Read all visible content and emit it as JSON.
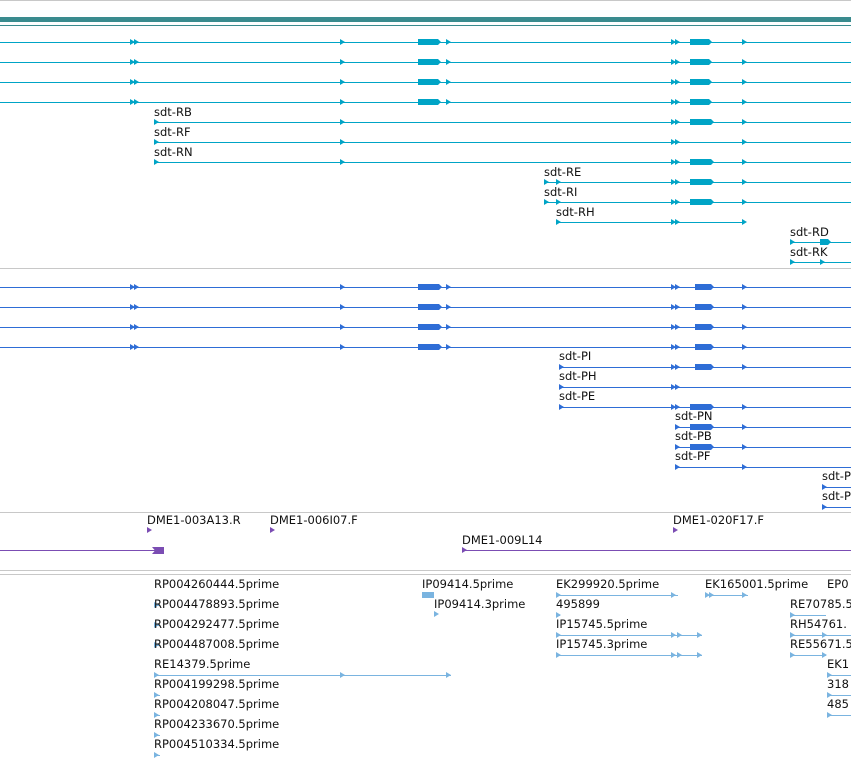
{
  "colors": {
    "teal_bar": "#3a8b8e",
    "transcript": "#00a4c6",
    "protein": "#2e6dd6",
    "clone": "#7b4db3",
    "est": "#7ab4e0",
    "separator": "#c8c8c8"
  },
  "transcripts": {
    "labels": [
      "sdt-RB",
      "sdt-RF",
      "sdt-RN",
      "sdt-RE",
      "sdt-RI",
      "sdt-RH",
      "sdt-RD",
      "sdt-RK"
    ]
  },
  "proteins": {
    "labels": [
      "sdt-PI",
      "sdt-PH",
      "sdt-PE",
      "sdt-PN",
      "sdt-PB",
      "sdt-PF",
      "sdt-P",
      "sdt-P"
    ]
  },
  "clones": {
    "labels": [
      "DME1-003A13.R",
      "DME1-006I07.F",
      "DME1-020F17.F",
      "DME1-009L14"
    ]
  },
  "ests": {
    "labels": [
      "RP004260444.5prime",
      "RP004478893.5prime",
      "RP004292477.5prime",
      "RP004487008.5prime",
      "RE14379.5prime",
      "RP004199298.5prime",
      "RP004208047.5prime",
      "RP004233670.5prime",
      "RP004510334.5prime",
      "IP09414.5prime",
      "IP09414.3prime",
      "EK299920.5prime",
      "495899",
      "IP15745.5prime",
      "IP15745.3prime",
      "EK165001.5prime",
      "EP0",
      "RE70785.5",
      "RH54761.",
      "RE55671.5",
      "EK1",
      "318",
      "485"
    ]
  }
}
